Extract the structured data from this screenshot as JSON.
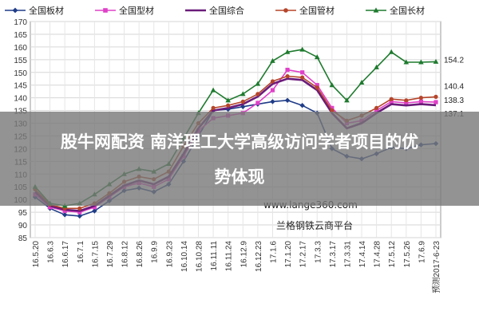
{
  "chart_data": {
    "type": "line",
    "ylim": [
      85,
      170
    ],
    "yticks": [
      85,
      90,
      95,
      100,
      105,
      110,
      115,
      120,
      125,
      130,
      135,
      140,
      145,
      150,
      155,
      160,
      165,
      170
    ],
    "grid": true,
    "legend_position": "top",
    "categories": [
      "16.5.20",
      "16.6.3",
      "16.6.17",
      "16.7.1",
      "16.7.15",
      "16.7.29",
      "16.8.12",
      "16.8.26",
      "16.9.9",
      "16.9.23",
      "16.10.14",
      "16.10.28",
      "16.11.11",
      "16.11.24",
      "16.12.9",
      "16.12.23",
      "17.1.6",
      "17.1.20",
      "17.2.17",
      "17.3.3",
      "17.3.17",
      "17.3.31",
      "17.4.14",
      "17.4.28",
      "17.5.12",
      "17.5.26",
      "17.6.9",
      "预测2017-6-23"
    ],
    "series": [
      {
        "name": "全国板材",
        "color": "#1f3c88",
        "marker": "diamond",
        "values": [
          101,
          96.5,
          94,
          93.5,
          95.5,
          99.5,
          103.5,
          104.5,
          103,
          106,
          115,
          125,
          135,
          135.5,
          136.5,
          137.5,
          138.5,
          139,
          137,
          134,
          120,
          117,
          116,
          118,
          120.5,
          120,
          121.5,
          122
        ],
        "end_label": ""
      },
      {
        "name": "全国型材",
        "color": "#e040c8",
        "marker": "square",
        "values": [
          102,
          97,
          95.5,
          95,
          97,
          101,
          105,
          106.5,
          105,
          108,
          117,
          127,
          132,
          133,
          134,
          138,
          143,
          151,
          150,
          145,
          136,
          130,
          131,
          135,
          138.5,
          138,
          138.5,
          138.3
        ],
        "end_label": "138.3"
      },
      {
        "name": "全国综合",
        "color": "#6a1b7a",
        "marker": "none",
        "values": [
          103,
          97.5,
          96,
          95.5,
          97.5,
          101.5,
          105.5,
          107.5,
          106,
          109,
          118,
          128,
          135,
          136,
          137.5,
          140.5,
          145.5,
          147.5,
          147,
          143,
          134,
          128,
          130,
          134,
          137.5,
          137,
          137.5,
          137.1
        ],
        "end_label": "137.1"
      },
      {
        "name": "全国管材",
        "color": "#b5452a",
        "marker": "circle",
        "values": [
          104,
          98,
          96.5,
          96.5,
          98.5,
          102.5,
          107,
          109,
          108,
          111,
          121,
          130,
          136,
          137,
          138.5,
          141.5,
          146.5,
          148.5,
          148,
          144,
          135,
          131,
          133,
          136,
          139.5,
          139,
          140,
          140.4
        ],
        "end_label": "140.4"
      },
      {
        "name": "全国长材",
        "color": "#1e7a2e",
        "marker": "triangle",
        "values": [
          105,
          98.5,
          97.5,
          98.5,
          102,
          106,
          110,
          112,
          111,
          114,
          124,
          134,
          143,
          139,
          141.5,
          145.5,
          154.5,
          158,
          159,
          156,
          145,
          139,
          146,
          152,
          158,
          154,
          154,
          154.2
        ],
        "end_label": "154.2"
      }
    ]
  },
  "overlay": {
    "line1": "股牛网配资 南洋理工大学高级访问学者项目的优",
    "line2": "势体现"
  },
  "watermark": {
    "url": "www.lange360.com",
    "platform": "兰格钢铁云商平台"
  }
}
